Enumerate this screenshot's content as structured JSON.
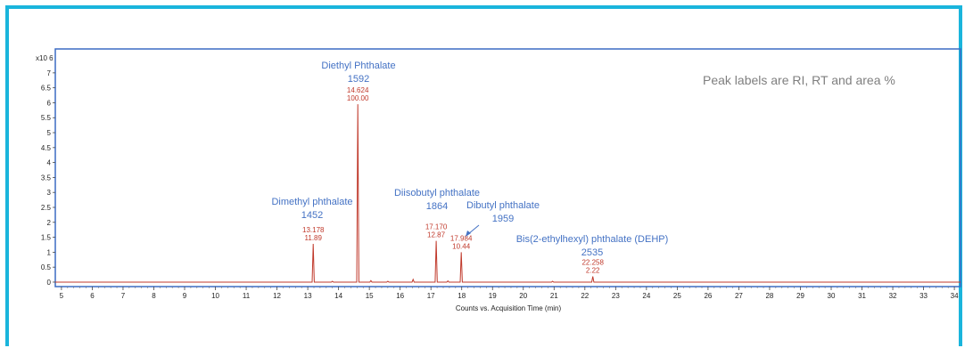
{
  "chart_data": {
    "type": "line",
    "xlabel": "Counts vs. Acquisition Time (min)",
    "y_multiplier": "x10 6",
    "xlim": [
      4.8,
      34.2
    ],
    "ylim": [
      -0.15,
      7.8
    ],
    "x_ticks": [
      5,
      6,
      7,
      8,
      9,
      10,
      11,
      12,
      13,
      14,
      15,
      16,
      17,
      18,
      19,
      20,
      21,
      22,
      23,
      24,
      25,
      26,
      27,
      28,
      29,
      30,
      31,
      32,
      33,
      34
    ],
    "y_ticks": [
      "0",
      "0.5",
      "1",
      "1.5",
      "2",
      "2.5",
      "3",
      "3.5",
      "4",
      "4.5",
      "5",
      "5.5",
      "6",
      "6.5",
      "7"
    ],
    "y_tick_values": [
      0,
      0.5,
      1,
      1.5,
      2,
      2.5,
      3,
      3.5,
      4,
      4.5,
      5,
      5.5,
      6,
      6.5,
      7
    ],
    "note": "Peak labels are RI, RT and area %",
    "trace_color": "#c0392b",
    "label_color": "#4472c4",
    "peaks": [
      {
        "rt": 13.178,
        "height": 1.28,
        "rt_label": "13.178",
        "area_label": "11.89",
        "name_line1": "Dimethyl phthalate",
        "name_line2": "1452"
      },
      {
        "rt": 14.624,
        "height": 5.95,
        "rt_label": "14.624",
        "area_label": "100.00",
        "name_line1": "Diethyl Phthalate",
        "name_line2": "1592"
      },
      {
        "rt": 17.17,
        "height": 1.38,
        "rt_label": "17.170",
        "area_label": "12.87",
        "name_line1": "Diisobutyl phthalate",
        "name_line2": "1864"
      },
      {
        "rt": 17.984,
        "height": 1.0,
        "rt_label": "17.984",
        "area_label": "10.44",
        "name_line1": "Dibutyl phthalate",
        "name_line2": "1959"
      },
      {
        "rt": 22.258,
        "height": 0.19,
        "rt_label": "22.258",
        "area_label": "2.22",
        "name_line1": "Bis(2-ethylhexyl) phthalate (DEHP)",
        "name_line2": "2535"
      }
    ],
    "minor_peaks": [
      {
        "rt": 13.8,
        "height": 0.03
      },
      {
        "rt": 15.05,
        "height": 0.05
      },
      {
        "rt": 15.6,
        "height": 0.03
      },
      {
        "rt": 16.42,
        "height": 0.09
      },
      {
        "rt": 17.55,
        "height": 0.04
      },
      {
        "rt": 20.95,
        "height": 0.03
      }
    ]
  }
}
